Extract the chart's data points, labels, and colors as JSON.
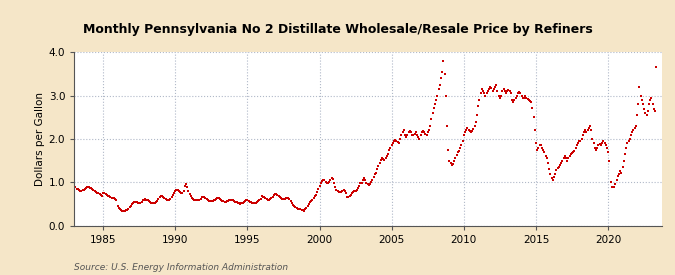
{
  "title": "Monthly Pennsylvania No 2 Distillate Wholesale/Resale Price by Refiners",
  "ylabel": "Dollars per Gallon",
  "source": "Source: U.S. Energy Information Administration",
  "background_color": "#f5e6c8",
  "plot_bg_color": "#ffffff",
  "line_color": "#cc0000",
  "marker": "s",
  "markersize": 2.0,
  "xlim_start": 1983.0,
  "xlim_end": 2023.7,
  "ylim": [
    0.0,
    4.0
  ],
  "yticks": [
    0.0,
    1.0,
    2.0,
    3.0,
    4.0
  ],
  "xticks": [
    1985,
    1990,
    1995,
    2000,
    2005,
    2010,
    2015,
    2020
  ],
  "data": [
    [
      1983.0,
      0.87
    ],
    [
      1983.083,
      0.88
    ],
    [
      1983.167,
      0.85
    ],
    [
      1983.25,
      0.84
    ],
    [
      1983.333,
      0.82
    ],
    [
      1983.417,
      0.8
    ],
    [
      1983.5,
      0.8
    ],
    [
      1983.583,
      0.82
    ],
    [
      1983.667,
      0.83
    ],
    [
      1983.75,
      0.85
    ],
    [
      1983.833,
      0.87
    ],
    [
      1983.917,
      0.88
    ],
    [
      1984.0,
      0.88
    ],
    [
      1984.083,
      0.87
    ],
    [
      1984.167,
      0.86
    ],
    [
      1984.25,
      0.84
    ],
    [
      1984.333,
      0.82
    ],
    [
      1984.417,
      0.8
    ],
    [
      1984.5,
      0.78
    ],
    [
      1984.583,
      0.76
    ],
    [
      1984.667,
      0.74
    ],
    [
      1984.75,
      0.72
    ],
    [
      1984.833,
      0.7
    ],
    [
      1984.917,
      0.68
    ],
    [
      1985.0,
      0.75
    ],
    [
      1985.083,
      0.74
    ],
    [
      1985.167,
      0.73
    ],
    [
      1985.25,
      0.71
    ],
    [
      1985.333,
      0.69
    ],
    [
      1985.417,
      0.67
    ],
    [
      1985.5,
      0.65
    ],
    [
      1985.583,
      0.64
    ],
    [
      1985.667,
      0.63
    ],
    [
      1985.75,
      0.63
    ],
    [
      1985.833,
      0.62
    ],
    [
      1985.917,
      0.6
    ],
    [
      1986.0,
      0.45
    ],
    [
      1986.083,
      0.4
    ],
    [
      1986.167,
      0.37
    ],
    [
      1986.25,
      0.35
    ],
    [
      1986.333,
      0.33
    ],
    [
      1986.417,
      0.33
    ],
    [
      1986.5,
      0.34
    ],
    [
      1986.583,
      0.35
    ],
    [
      1986.667,
      0.36
    ],
    [
      1986.75,
      0.38
    ],
    [
      1986.833,
      0.42
    ],
    [
      1986.917,
      0.45
    ],
    [
      1987.0,
      0.5
    ],
    [
      1987.083,
      0.52
    ],
    [
      1987.167,
      0.54
    ],
    [
      1987.25,
      0.55
    ],
    [
      1987.333,
      0.54
    ],
    [
      1987.417,
      0.53
    ],
    [
      1987.5,
      0.52
    ],
    [
      1987.583,
      0.53
    ],
    [
      1987.667,
      0.55
    ],
    [
      1987.75,
      0.58
    ],
    [
      1987.833,
      0.6
    ],
    [
      1987.917,
      0.62
    ],
    [
      1988.0,
      0.6
    ],
    [
      1988.083,
      0.58
    ],
    [
      1988.167,
      0.56
    ],
    [
      1988.25,
      0.54
    ],
    [
      1988.333,
      0.53
    ],
    [
      1988.417,
      0.52
    ],
    [
      1988.5,
      0.51
    ],
    [
      1988.583,
      0.52
    ],
    [
      1988.667,
      0.54
    ],
    [
      1988.75,
      0.57
    ],
    [
      1988.833,
      0.61
    ],
    [
      1988.917,
      0.65
    ],
    [
      1989.0,
      0.68
    ],
    [
      1989.083,
      0.67
    ],
    [
      1989.167,
      0.65
    ],
    [
      1989.25,
      0.63
    ],
    [
      1989.333,
      0.61
    ],
    [
      1989.417,
      0.6
    ],
    [
      1989.5,
      0.59
    ],
    [
      1989.583,
      0.6
    ],
    [
      1989.667,
      0.62
    ],
    [
      1989.75,
      0.65
    ],
    [
      1989.833,
      0.7
    ],
    [
      1989.917,
      0.76
    ],
    [
      1990.0,
      0.8
    ],
    [
      1990.083,
      0.82
    ],
    [
      1990.167,
      0.81
    ],
    [
      1990.25,
      0.79
    ],
    [
      1990.333,
      0.77
    ],
    [
      1990.417,
      0.75
    ],
    [
      1990.5,
      0.74
    ],
    [
      1990.583,
      0.8
    ],
    [
      1990.667,
      0.92
    ],
    [
      1990.75,
      0.95
    ],
    [
      1990.833,
      0.88
    ],
    [
      1990.917,
      0.8
    ],
    [
      1991.0,
      0.72
    ],
    [
      1991.083,
      0.68
    ],
    [
      1991.167,
      0.64
    ],
    [
      1991.25,
      0.62
    ],
    [
      1991.333,
      0.6
    ],
    [
      1991.417,
      0.59
    ],
    [
      1991.5,
      0.58
    ],
    [
      1991.583,
      0.59
    ],
    [
      1991.667,
      0.6
    ],
    [
      1991.75,
      0.62
    ],
    [
      1991.833,
      0.65
    ],
    [
      1991.917,
      0.66
    ],
    [
      1992.0,
      0.65
    ],
    [
      1992.083,
      0.63
    ],
    [
      1992.167,
      0.61
    ],
    [
      1992.25,
      0.59
    ],
    [
      1992.333,
      0.57
    ],
    [
      1992.417,
      0.56
    ],
    [
      1992.5,
      0.56
    ],
    [
      1992.583,
      0.57
    ],
    [
      1992.667,
      0.58
    ],
    [
      1992.75,
      0.6
    ],
    [
      1992.833,
      0.62
    ],
    [
      1992.917,
      0.64
    ],
    [
      1993.0,
      0.63
    ],
    [
      1993.083,
      0.61
    ],
    [
      1993.167,
      0.59
    ],
    [
      1993.25,
      0.57
    ],
    [
      1993.333,
      0.56
    ],
    [
      1993.417,
      0.55
    ],
    [
      1993.5,
      0.55
    ],
    [
      1993.583,
      0.56
    ],
    [
      1993.667,
      0.57
    ],
    [
      1993.75,
      0.58
    ],
    [
      1993.833,
      0.59
    ],
    [
      1993.917,
      0.6
    ],
    [
      1994.0,
      0.58
    ],
    [
      1994.083,
      0.56
    ],
    [
      1994.167,
      0.55
    ],
    [
      1994.25,
      0.54
    ],
    [
      1994.333,
      0.52
    ],
    [
      1994.417,
      0.51
    ],
    [
      1994.5,
      0.5
    ],
    [
      1994.583,
      0.51
    ],
    [
      1994.667,
      0.52
    ],
    [
      1994.75,
      0.54
    ],
    [
      1994.833,
      0.56
    ],
    [
      1994.917,
      0.58
    ],
    [
      1995.0,
      0.58
    ],
    [
      1995.083,
      0.57
    ],
    [
      1995.167,
      0.55
    ],
    [
      1995.25,
      0.54
    ],
    [
      1995.333,
      0.53
    ],
    [
      1995.417,
      0.52
    ],
    [
      1995.5,
      0.51
    ],
    [
      1995.583,
      0.52
    ],
    [
      1995.667,
      0.54
    ],
    [
      1995.75,
      0.56
    ],
    [
      1995.833,
      0.59
    ],
    [
      1995.917,
      0.62
    ],
    [
      1996.0,
      0.67
    ],
    [
      1996.083,
      0.66
    ],
    [
      1996.167,
      0.65
    ],
    [
      1996.25,
      0.63
    ],
    [
      1996.333,
      0.61
    ],
    [
      1996.417,
      0.6
    ],
    [
      1996.5,
      0.59
    ],
    [
      1996.583,
      0.61
    ],
    [
      1996.667,
      0.63
    ],
    [
      1996.75,
      0.66
    ],
    [
      1996.833,
      0.7
    ],
    [
      1996.917,
      0.73
    ],
    [
      1997.0,
      0.72
    ],
    [
      1997.083,
      0.7
    ],
    [
      1997.167,
      0.68
    ],
    [
      1997.25,
      0.66
    ],
    [
      1997.333,
      0.64
    ],
    [
      1997.417,
      0.62
    ],
    [
      1997.5,
      0.61
    ],
    [
      1997.583,
      0.62
    ],
    [
      1997.667,
      0.63
    ],
    [
      1997.75,
      0.64
    ],
    [
      1997.833,
      0.63
    ],
    [
      1997.917,
      0.61
    ],
    [
      1998.0,
      0.56
    ],
    [
      1998.083,
      0.51
    ],
    [
      1998.167,
      0.47
    ],
    [
      1998.25,
      0.44
    ],
    [
      1998.333,
      0.42
    ],
    [
      1998.417,
      0.4
    ],
    [
      1998.5,
      0.39
    ],
    [
      1998.583,
      0.38
    ],
    [
      1998.667,
      0.37
    ],
    [
      1998.75,
      0.36
    ],
    [
      1998.833,
      0.35
    ],
    [
      1998.917,
      0.34
    ],
    [
      1999.0,
      0.37
    ],
    [
      1999.083,
      0.41
    ],
    [
      1999.167,
      0.45
    ],
    [
      1999.25,
      0.5
    ],
    [
      1999.333,
      0.54
    ],
    [
      1999.417,
      0.57
    ],
    [
      1999.5,
      0.6
    ],
    [
      1999.583,
      0.64
    ],
    [
      1999.667,
      0.67
    ],
    [
      1999.75,
      0.71
    ],
    [
      1999.833,
      0.78
    ],
    [
      1999.917,
      0.85
    ],
    [
      2000.0,
      0.92
    ],
    [
      2000.083,
      0.97
    ],
    [
      2000.167,
      1.02
    ],
    [
      2000.25,
      1.05
    ],
    [
      2000.333,
      1.04
    ],
    [
      2000.417,
      1.0
    ],
    [
      2000.5,
      0.97
    ],
    [
      2000.583,
      0.98
    ],
    [
      2000.667,
      1.0
    ],
    [
      2000.75,
      1.05
    ],
    [
      2000.833,
      1.1
    ],
    [
      2000.917,
      1.07
    ],
    [
      2001.0,
      0.98
    ],
    [
      2001.083,
      0.9
    ],
    [
      2001.167,
      0.83
    ],
    [
      2001.25,
      0.79
    ],
    [
      2001.333,
      0.78
    ],
    [
      2001.417,
      0.77
    ],
    [
      2001.5,
      0.78
    ],
    [
      2001.583,
      0.8
    ],
    [
      2001.667,
      0.82
    ],
    [
      2001.75,
      0.8
    ],
    [
      2001.833,
      0.74
    ],
    [
      2001.917,
      0.66
    ],
    [
      2002.0,
      0.65
    ],
    [
      2002.083,
      0.67
    ],
    [
      2002.167,
      0.7
    ],
    [
      2002.25,
      0.74
    ],
    [
      2002.333,
      0.77
    ],
    [
      2002.417,
      0.79
    ],
    [
      2002.5,
      0.8
    ],
    [
      2002.583,
      0.83
    ],
    [
      2002.667,
      0.87
    ],
    [
      2002.75,
      0.92
    ],
    [
      2002.833,
      0.97
    ],
    [
      2002.917,
      0.98
    ],
    [
      2003.0,
      1.05
    ],
    [
      2003.083,
      1.1
    ],
    [
      2003.167,
      1.05
    ],
    [
      2003.25,
      0.98
    ],
    [
      2003.333,
      0.95
    ],
    [
      2003.417,
      0.93
    ],
    [
      2003.5,
      0.95
    ],
    [
      2003.583,
      1.0
    ],
    [
      2003.667,
      1.05
    ],
    [
      2003.75,
      1.12
    ],
    [
      2003.833,
      1.18
    ],
    [
      2003.917,
      1.22
    ],
    [
      2004.0,
      1.3
    ],
    [
      2004.083,
      1.38
    ],
    [
      2004.167,
      1.45
    ],
    [
      2004.25,
      1.52
    ],
    [
      2004.333,
      1.55
    ],
    [
      2004.417,
      1.53
    ],
    [
      2004.5,
      1.52
    ],
    [
      2004.583,
      1.55
    ],
    [
      2004.667,
      1.6
    ],
    [
      2004.75,
      1.65
    ],
    [
      2004.833,
      1.75
    ],
    [
      2004.917,
      1.8
    ],
    [
      2005.0,
      1.85
    ],
    [
      2005.083,
      1.9
    ],
    [
      2005.167,
      1.95
    ],
    [
      2005.25,
      1.98
    ],
    [
      2005.333,
      1.95
    ],
    [
      2005.417,
      1.92
    ],
    [
      2005.5,
      1.9
    ],
    [
      2005.583,
      2.0
    ],
    [
      2005.667,
      2.1
    ],
    [
      2005.75,
      2.15
    ],
    [
      2005.833,
      2.2
    ],
    [
      2005.917,
      2.1
    ],
    [
      2006.0,
      2.05
    ],
    [
      2006.083,
      2.1
    ],
    [
      2006.167,
      2.15
    ],
    [
      2006.25,
      2.18
    ],
    [
      2006.333,
      2.15
    ],
    [
      2006.417,
      2.1
    ],
    [
      2006.5,
      2.08
    ],
    [
      2006.583,
      2.12
    ],
    [
      2006.667,
      2.15
    ],
    [
      2006.75,
      2.1
    ],
    [
      2006.833,
      2.05
    ],
    [
      2006.917,
      2.0
    ],
    [
      2007.0,
      2.1
    ],
    [
      2007.083,
      2.15
    ],
    [
      2007.167,
      2.18
    ],
    [
      2007.25,
      2.15
    ],
    [
      2007.333,
      2.12
    ],
    [
      2007.417,
      2.1
    ],
    [
      2007.5,
      2.15
    ],
    [
      2007.583,
      2.2
    ],
    [
      2007.667,
      2.3
    ],
    [
      2007.75,
      2.45
    ],
    [
      2007.833,
      2.6
    ],
    [
      2007.917,
      2.72
    ],
    [
      2008.0,
      2.8
    ],
    [
      2008.083,
      2.9
    ],
    [
      2008.167,
      3.0
    ],
    [
      2008.25,
      3.15
    ],
    [
      2008.333,
      3.25
    ],
    [
      2008.417,
      3.4
    ],
    [
      2008.5,
      3.55
    ],
    [
      2008.583,
      3.8
    ],
    [
      2008.667,
      3.5
    ],
    [
      2008.75,
      3.0
    ],
    [
      2008.833,
      2.3
    ],
    [
      2008.917,
      1.75
    ],
    [
      2009.0,
      1.5
    ],
    [
      2009.083,
      1.45
    ],
    [
      2009.167,
      1.4
    ],
    [
      2009.25,
      1.42
    ],
    [
      2009.333,
      1.48
    ],
    [
      2009.417,
      1.55
    ],
    [
      2009.5,
      1.63
    ],
    [
      2009.583,
      1.7
    ],
    [
      2009.667,
      1.72
    ],
    [
      2009.75,
      1.78
    ],
    [
      2009.833,
      1.85
    ],
    [
      2009.917,
      1.95
    ],
    [
      2010.0,
      2.1
    ],
    [
      2010.083,
      2.15
    ],
    [
      2010.167,
      2.2
    ],
    [
      2010.25,
      2.25
    ],
    [
      2010.333,
      2.2
    ],
    [
      2010.417,
      2.18
    ],
    [
      2010.5,
      2.15
    ],
    [
      2010.583,
      2.18
    ],
    [
      2010.667,
      2.22
    ],
    [
      2010.75,
      2.3
    ],
    [
      2010.833,
      2.4
    ],
    [
      2010.917,
      2.55
    ],
    [
      2011.0,
      2.75
    ],
    [
      2011.083,
      2.9
    ],
    [
      2011.167,
      3.05
    ],
    [
      2011.25,
      3.15
    ],
    [
      2011.333,
      3.1
    ],
    [
      2011.417,
      3.05
    ],
    [
      2011.5,
      3.0
    ],
    [
      2011.583,
      3.05
    ],
    [
      2011.667,
      3.1
    ],
    [
      2011.75,
      3.15
    ],
    [
      2011.833,
      3.2
    ],
    [
      2011.917,
      3.18
    ],
    [
      2012.0,
      3.1
    ],
    [
      2012.083,
      3.15
    ],
    [
      2012.167,
      3.2
    ],
    [
      2012.25,
      3.25
    ],
    [
      2012.333,
      3.1
    ],
    [
      2012.417,
      3.0
    ],
    [
      2012.5,
      2.95
    ],
    [
      2012.583,
      3.0
    ],
    [
      2012.667,
      3.1
    ],
    [
      2012.75,
      3.15
    ],
    [
      2012.833,
      3.1
    ],
    [
      2012.917,
      3.05
    ],
    [
      2013.0,
      3.1
    ],
    [
      2013.083,
      3.12
    ],
    [
      2013.167,
      3.1
    ],
    [
      2013.25,
      3.05
    ],
    [
      2013.333,
      2.9
    ],
    [
      2013.417,
      2.85
    ],
    [
      2013.5,
      2.9
    ],
    [
      2013.583,
      2.95
    ],
    [
      2013.667,
      3.0
    ],
    [
      2013.75,
      3.05
    ],
    [
      2013.833,
      3.08
    ],
    [
      2013.917,
      3.05
    ],
    [
      2014.0,
      3.0
    ],
    [
      2014.083,
      2.95
    ],
    [
      2014.167,
      2.95
    ],
    [
      2014.25,
      2.98
    ],
    [
      2014.333,
      2.95
    ],
    [
      2014.417,
      2.92
    ],
    [
      2014.5,
      2.9
    ],
    [
      2014.583,
      2.88
    ],
    [
      2014.667,
      2.85
    ],
    [
      2014.75,
      2.72
    ],
    [
      2014.833,
      2.5
    ],
    [
      2014.917,
      2.2
    ],
    [
      2015.0,
      1.9
    ],
    [
      2015.083,
      1.75
    ],
    [
      2015.167,
      1.8
    ],
    [
      2015.25,
      1.85
    ],
    [
      2015.333,
      1.85
    ],
    [
      2015.417,
      1.8
    ],
    [
      2015.5,
      1.75
    ],
    [
      2015.583,
      1.7
    ],
    [
      2015.667,
      1.6
    ],
    [
      2015.75,
      1.55
    ],
    [
      2015.833,
      1.45
    ],
    [
      2015.917,
      1.3
    ],
    [
      2016.0,
      1.2
    ],
    [
      2016.083,
      1.1
    ],
    [
      2016.167,
      1.05
    ],
    [
      2016.25,
      1.12
    ],
    [
      2016.333,
      1.2
    ],
    [
      2016.417,
      1.28
    ],
    [
      2016.5,
      1.32
    ],
    [
      2016.583,
      1.35
    ],
    [
      2016.667,
      1.4
    ],
    [
      2016.75,
      1.45
    ],
    [
      2016.833,
      1.5
    ],
    [
      2016.917,
      1.55
    ],
    [
      2017.0,
      1.6
    ],
    [
      2017.083,
      1.55
    ],
    [
      2017.167,
      1.5
    ],
    [
      2017.25,
      1.55
    ],
    [
      2017.333,
      1.6
    ],
    [
      2017.417,
      1.65
    ],
    [
      2017.5,
      1.68
    ],
    [
      2017.583,
      1.7
    ],
    [
      2017.667,
      1.72
    ],
    [
      2017.75,
      1.8
    ],
    [
      2017.833,
      1.85
    ],
    [
      2017.917,
      1.9
    ],
    [
      2018.0,
      1.95
    ],
    [
      2018.083,
      1.95
    ],
    [
      2018.167,
      2.0
    ],
    [
      2018.25,
      2.1
    ],
    [
      2018.333,
      2.15
    ],
    [
      2018.417,
      2.2
    ],
    [
      2018.5,
      2.15
    ],
    [
      2018.583,
      2.2
    ],
    [
      2018.667,
      2.25
    ],
    [
      2018.75,
      2.3
    ],
    [
      2018.833,
      2.2
    ],
    [
      2018.917,
      2.0
    ],
    [
      2019.0,
      1.9
    ],
    [
      2019.083,
      1.8
    ],
    [
      2019.167,
      1.75
    ],
    [
      2019.25,
      1.8
    ],
    [
      2019.333,
      1.85
    ],
    [
      2019.417,
      1.88
    ],
    [
      2019.5,
      1.85
    ],
    [
      2019.583,
      1.9
    ],
    [
      2019.667,
      1.95
    ],
    [
      2019.75,
      1.9
    ],
    [
      2019.833,
      1.85
    ],
    [
      2019.917,
      1.8
    ],
    [
      2020.0,
      1.7
    ],
    [
      2020.083,
      1.5
    ],
    [
      2020.167,
      1.0
    ],
    [
      2020.25,
      0.9
    ],
    [
      2020.333,
      0.88
    ],
    [
      2020.417,
      0.9
    ],
    [
      2020.5,
      0.95
    ],
    [
      2020.583,
      1.05
    ],
    [
      2020.667,
      1.15
    ],
    [
      2020.75,
      1.2
    ],
    [
      2020.833,
      1.25
    ],
    [
      2020.917,
      1.22
    ],
    [
      2021.0,
      1.35
    ],
    [
      2021.083,
      1.5
    ],
    [
      2021.167,
      1.65
    ],
    [
      2021.25,
      1.8
    ],
    [
      2021.333,
      1.9
    ],
    [
      2021.417,
      1.95
    ],
    [
      2021.5,
      2.0
    ],
    [
      2021.583,
      2.1
    ],
    [
      2021.667,
      2.15
    ],
    [
      2021.75,
      2.2
    ],
    [
      2021.833,
      2.25
    ],
    [
      2021.917,
      2.3
    ],
    [
      2022.0,
      2.55
    ],
    [
      2022.083,
      2.8
    ],
    [
      2022.167,
      3.2
    ],
    [
      2022.25,
      3.0
    ],
    [
      2022.333,
      2.9
    ],
    [
      2022.417,
      2.8
    ],
    [
      2022.5,
      2.7
    ],
    [
      2022.583,
      2.6
    ],
    [
      2022.667,
      2.55
    ],
    [
      2022.75,
      2.65
    ],
    [
      2022.833,
      2.8
    ],
    [
      2022.917,
      2.9
    ],
    [
      2023.0,
      2.95
    ],
    [
      2023.083,
      2.8
    ],
    [
      2023.167,
      2.7
    ],
    [
      2023.25,
      2.65
    ],
    [
      2023.333,
      3.65
    ]
  ]
}
